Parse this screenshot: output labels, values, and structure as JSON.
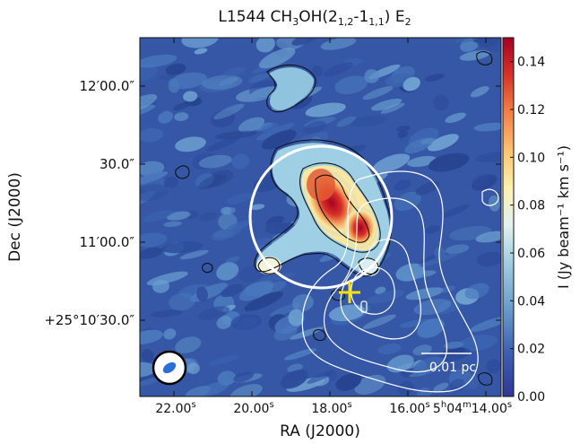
{
  "figure": {
    "title_prefix": "L1544 CH",
    "title_sub3": "3",
    "title_mid": "OH(2",
    "title_sub_a": "1,2",
    "title_dash": "-1",
    "title_sub_b": "1,1",
    "title_end": ") E",
    "title_sub2": "2"
  },
  "axes": {
    "xlabel": "RA (J2000)",
    "ylabel": "Dec (J2000)",
    "xticks": [
      {
        "label": "22.00",
        "sup": "s"
      },
      {
        "label": "20.00",
        "sup": "s"
      },
      {
        "label": "18.00",
        "sup": "s"
      },
      {
        "label": "16.00",
        "sup": "s"
      },
      {
        "label": "5",
        "sup": "h",
        "label2": "04",
        "sup2": "m",
        "label3": "14.00",
        "sup3": "s"
      }
    ],
    "yticks": [
      "12′00.0″",
      "30.0″",
      "11′00.0″",
      "+25°10′30.0″"
    ]
  },
  "colorbar": {
    "label": "I (Jy beam⁻¹ km s⁻¹)",
    "ticks": [
      "0.14",
      "0.12",
      "0.10",
      "0.08",
      "0.06",
      "0.04",
      "0.02",
      "0.00"
    ],
    "min": 0.0,
    "max": 0.15,
    "colormap": "RdYlBu_r"
  },
  "annotations": {
    "scalebar_label": "0.01 pc",
    "marker_color": "#ffe000",
    "circle_color": "#ffffff",
    "beam_color": "#2a6fd6"
  }
}
